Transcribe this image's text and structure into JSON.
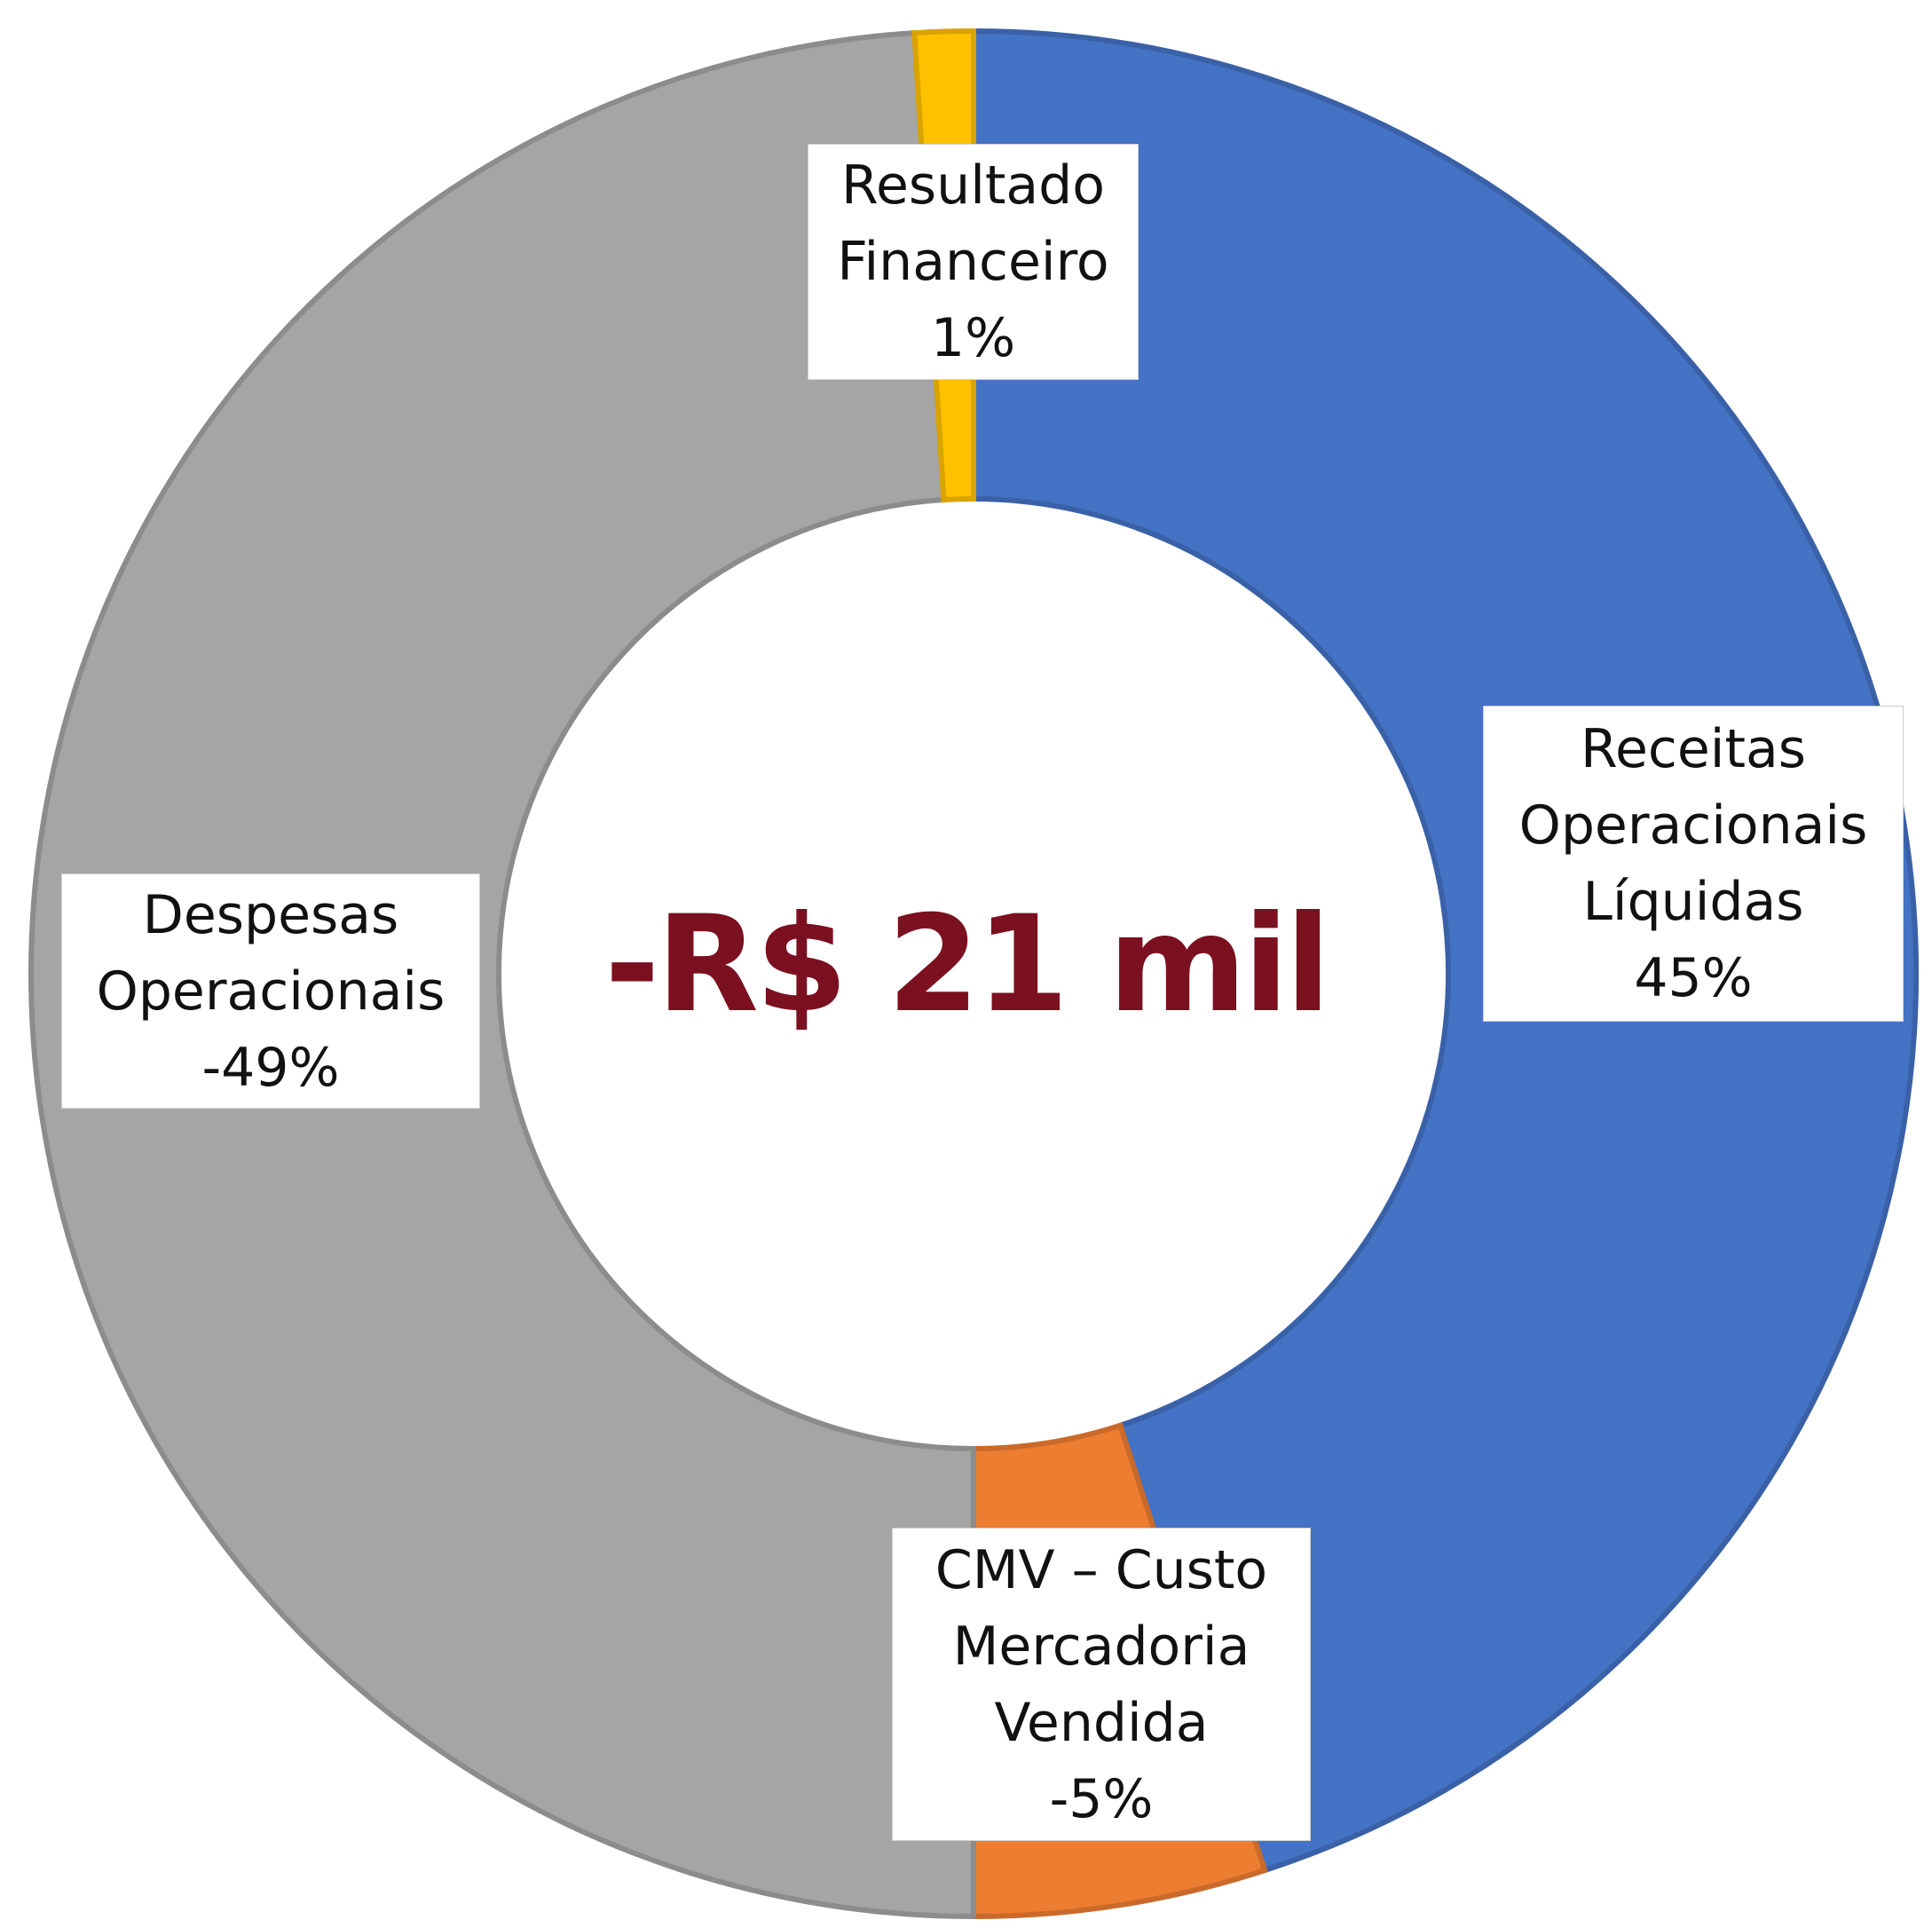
{
  "chart_data": {
    "type": "donut",
    "categories": [
      "Receitas Operacionais Líquidas",
      "CMV – Custo Mercadoria Vendida",
      "Despesas Operacionais",
      "Resultado Financeiro"
    ],
    "values": [
      45,
      -5,
      -49,
      1
    ],
    "value_labels": [
      "45%",
      "-5%",
      "-49%",
      "1%"
    ],
    "colors": [
      "#4472c4",
      "#ed7d31",
      "#a5a5a5",
      "#ffc000"
    ],
    "center_label": "-R$ 21 mil"
  }
}
